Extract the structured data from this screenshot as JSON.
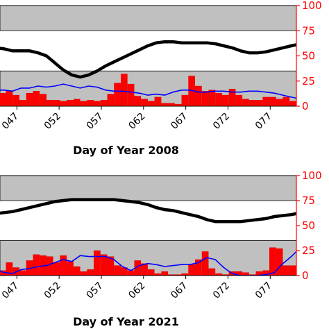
{
  "colors": {
    "band": "#c0c0c0",
    "bar": "#ff0000",
    "bar_edge": "#cc0000",
    "blue_line": "#0000ff",
    "black_line": "#000000",
    "right_axis": "#ff0000"
  },
  "chart_data": [
    {
      "type": "bar",
      "xlabel": "Day of Year 2008",
      "ylim": [
        0,
        100
      ],
      "right_axis_ticks": [
        "0",
        "25",
        "50",
        "75",
        "100"
      ],
      "x_tick_labels": [
        "047",
        "052",
        "057",
        "062",
        "067",
        "072",
        "077"
      ],
      "x_ticks": [
        47,
        52,
        57,
        62,
        67,
        72,
        77
      ],
      "xlim": [
        45.0,
        80.1
      ],
      "shaded_bands": [
        [
          0,
          35
        ],
        [
          75,
          100
        ]
      ],
      "series": [
        {
          "kind": "bar",
          "x": [
            44.5,
            45.3,
            46.1,
            46.9,
            47.7,
            48.5,
            49.3,
            50.1,
            50.9,
            51.7,
            52.5,
            53.3,
            54.1,
            54.9,
            55.7,
            56.5,
            57.3,
            58.1,
            58.9,
            59.7,
            60.5,
            61.3,
            62.1,
            62.9,
            63.7,
            64.5,
            65.3,
            66.1,
            66.9,
            67.7,
            68.5,
            69.3,
            70.1,
            70.9,
            71.7,
            72.5,
            73.3,
            74.1,
            74.9,
            75.7,
            76.5,
            77.3,
            78.1,
            78.9,
            79.7
          ],
          "values": [
            14,
            13,
            15,
            11,
            6,
            13,
            15,
            12,
            6,
            6,
            5,
            6,
            7,
            5,
            6,
            5,
            6,
            12,
            23,
            32,
            22,
            10,
            7,
            5,
            9,
            3,
            3,
            2,
            11,
            30,
            20,
            15,
            16,
            13,
            11,
            17,
            11,
            7,
            6,
            6,
            9,
            9,
            7,
            9,
            5
          ]
        },
        {
          "kind": "line",
          "color": "blue",
          "x": [
            44.5,
            45.5,
            46.5,
            47.5,
            48.5,
            49.5,
            50.5,
            51.5,
            52.5,
            53.5,
            54.5,
            55.5,
            56.5,
            57.5,
            58.5,
            59.5,
            60.5,
            61.5,
            62.5,
            63.5,
            64.5,
            65.5,
            66.5,
            67.5,
            68.5,
            69.5,
            70.5,
            71.5,
            72.5,
            73.5,
            74.5,
            75.5,
            76.5,
            77.5,
            78.5,
            79.5,
            80.1
          ],
          "values": [
            16,
            16,
            15,
            18,
            18,
            20,
            19,
            20,
            22,
            20,
            18,
            20,
            19,
            16,
            15,
            15,
            14,
            13,
            11,
            12,
            11,
            14,
            16,
            16,
            14,
            14,
            15,
            15,
            14,
            14,
            15,
            15,
            14,
            13,
            11,
            9,
            8
          ]
        },
        {
          "kind": "line",
          "color": "black",
          "x": [
            44.5,
            45.5,
            46.5,
            47.5,
            48.5,
            49.5,
            50.5,
            51.5,
            52.5,
            53.5,
            54.5,
            55.5,
            56.5,
            57.5,
            58.5,
            59.5,
            60.5,
            61.5,
            62.5,
            63.5,
            64.5,
            65.5,
            66.5,
            67.5,
            68.5,
            69.5,
            70.5,
            71.5,
            72.5,
            73.5,
            74.5,
            75.5,
            76.5,
            77.5,
            78.5,
            79.5,
            80.1
          ],
          "values": [
            58,
            57,
            55,
            55,
            55,
            53,
            50,
            43,
            36,
            31,
            29,
            31,
            35,
            40,
            44,
            48,
            52,
            56,
            60,
            63,
            64,
            64,
            63,
            63,
            63,
            63,
            62,
            60,
            58,
            55,
            53,
            53,
            54,
            56,
            58,
            60,
            61
          ]
        }
      ]
    },
    {
      "type": "bar",
      "xlabel": "Day of Year 2021",
      "ylim": [
        0,
        100
      ],
      "right_axis_ticks": [
        "0",
        "25",
        "50",
        "75",
        "100"
      ],
      "x_tick_labels": [
        "047",
        "052",
        "057",
        "062",
        "067",
        "072",
        "077"
      ],
      "x_ticks": [
        47,
        52,
        57,
        62,
        67,
        72,
        77
      ],
      "xlim": [
        45.0,
        80.1
      ],
      "shaded_bands": [
        [
          0,
          35
        ],
        [
          75,
          100
        ]
      ],
      "series": [
        {
          "kind": "bar",
          "x": [
            44.5,
            45.3,
            46.1,
            46.9,
            47.7,
            48.5,
            49.3,
            50.1,
            50.9,
            51.7,
            52.5,
            53.3,
            54.1,
            54.9,
            55.7,
            56.5,
            57.3,
            58.1,
            58.9,
            59.7,
            60.5,
            61.3,
            62.1,
            62.9,
            63.7,
            64.5,
            65.3,
            66.1,
            66.9,
            67.7,
            68.5,
            69.3,
            70.1,
            70.9,
            71.7,
            72.5,
            73.3,
            74.1,
            74.9,
            75.7,
            76.5,
            77.3,
            78.1,
            78.9,
            79.7
          ],
          "values": [
            6,
            5,
            13,
            8,
            5,
            15,
            21,
            20,
            19,
            13,
            20,
            14,
            9,
            4,
            6,
            25,
            21,
            19,
            10,
            8,
            5,
            15,
            12,
            6,
            2,
            4,
            1,
            1,
            2,
            11,
            16,
            24,
            7,
            2,
            1,
            4,
            4,
            3,
            1,
            4,
            5,
            28,
            27,
            10,
            10
          ]
        },
        {
          "kind": "line",
          "color": "blue",
          "x": [
            44.5,
            45.5,
            46.5,
            47.5,
            48.5,
            49.5,
            50.5,
            51.5,
            52.5,
            53.5,
            54.5,
            55.5,
            56.5,
            57.5,
            58.5,
            59.5,
            60.5,
            61.5,
            62.5,
            63.5,
            64.5,
            65.5,
            66.5,
            67.5,
            68.5,
            69.5,
            70.5,
            71.5,
            72.5,
            73.5,
            74.5,
            75.5,
            76.5,
            77.5,
            78.5,
            79.5,
            80.1
          ],
          "values": [
            6,
            3,
            2,
            6,
            7,
            9,
            10,
            13,
            16,
            14,
            20,
            19,
            19,
            19,
            16,
            9,
            5,
            10,
            12,
            11,
            9,
            10,
            11,
            11,
            13,
            18,
            16,
            8,
            2,
            0,
            0,
            0,
            1,
            3,
            12,
            19,
            24
          ]
        },
        {
          "kind": "line",
          "color": "black",
          "x": [
            44.5,
            45.5,
            46.5,
            47.5,
            48.5,
            49.5,
            50.5,
            51.5,
            52.5,
            53.5,
            54.5,
            55.5,
            56.5,
            57.5,
            58.5,
            59.5,
            60.5,
            61.5,
            62.5,
            63.5,
            64.5,
            65.5,
            66.5,
            67.5,
            68.5,
            69.5,
            70.5,
            71.5,
            72.5,
            73.5,
            74.5,
            75.5,
            76.5,
            77.5,
            78.5,
            79.5,
            80.1
          ],
          "values": [
            62,
            63,
            64,
            66,
            68,
            70,
            72,
            74,
            75,
            76,
            76,
            76,
            76,
            76,
            76,
            75,
            74,
            73,
            71,
            68,
            66,
            65,
            63,
            61,
            59,
            56,
            54,
            54,
            54,
            54,
            55,
            56,
            57,
            59,
            60,
            61,
            62
          ]
        }
      ]
    }
  ]
}
